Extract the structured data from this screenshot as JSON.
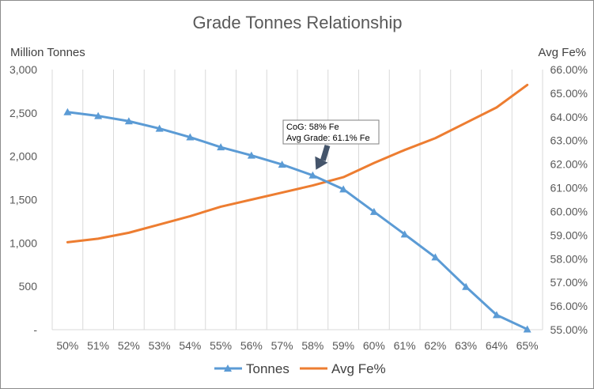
{
  "chart_data": {
    "type": "line",
    "title": "Grade Tonnes Relationship",
    "categories": [
      "50%",
      "51%",
      "52%",
      "53%",
      "54%",
      "55%",
      "56%",
      "57%",
      "58%",
      "59%",
      "60%",
      "61%",
      "62%",
      "63%",
      "64%",
      "65%"
    ],
    "y_left": {
      "label": "Million Tonnes",
      "range": [
        0,
        3000
      ],
      "ticks": [
        0,
        500,
        1000,
        1500,
        2000,
        2500,
        3000
      ],
      "tick_labels": [
        "-",
        "500",
        "1,000",
        "1,500",
        "2,000",
        "2,500",
        "3,000"
      ]
    },
    "y_right": {
      "label": "Avg Fe%",
      "range": [
        55,
        66
      ],
      "ticks": [
        55,
        56,
        57,
        58,
        59,
        60,
        61,
        62,
        63,
        64,
        65,
        66
      ],
      "tick_labels": [
        "55.00%",
        "56.00%",
        "57.00%",
        "58.00%",
        "59.00%",
        "60.00%",
        "61.00%",
        "62.00%",
        "63.00%",
        "64.00%",
        "65.00%",
        "66.00%"
      ]
    },
    "series": [
      {
        "name": "Tonnes",
        "axis": "left",
        "color": "#5B9BD5",
        "marker": "triangle",
        "values": [
          2510,
          2465,
          2405,
          2320,
          2220,
          2105,
          2010,
          1905,
          1780,
          1620,
          1360,
          1100,
          835,
          495,
          170,
          5
        ]
      },
      {
        "name": "Avg Fe%",
        "axis": "right",
        "color": "#ED7D31",
        "marker": "none",
        "values": [
          58.7,
          58.85,
          59.1,
          59.45,
          59.8,
          60.2,
          60.5,
          60.8,
          61.1,
          61.45,
          62.05,
          62.6,
          63.1,
          63.75,
          64.4,
          65.35
        ]
      }
    ],
    "annotation": {
      "lines": [
        "CoG: 58% Fe",
        "Avg Grade: 61.1% Fe"
      ],
      "points_to": "58%"
    },
    "grid": "vertical",
    "legend": "bottom"
  }
}
